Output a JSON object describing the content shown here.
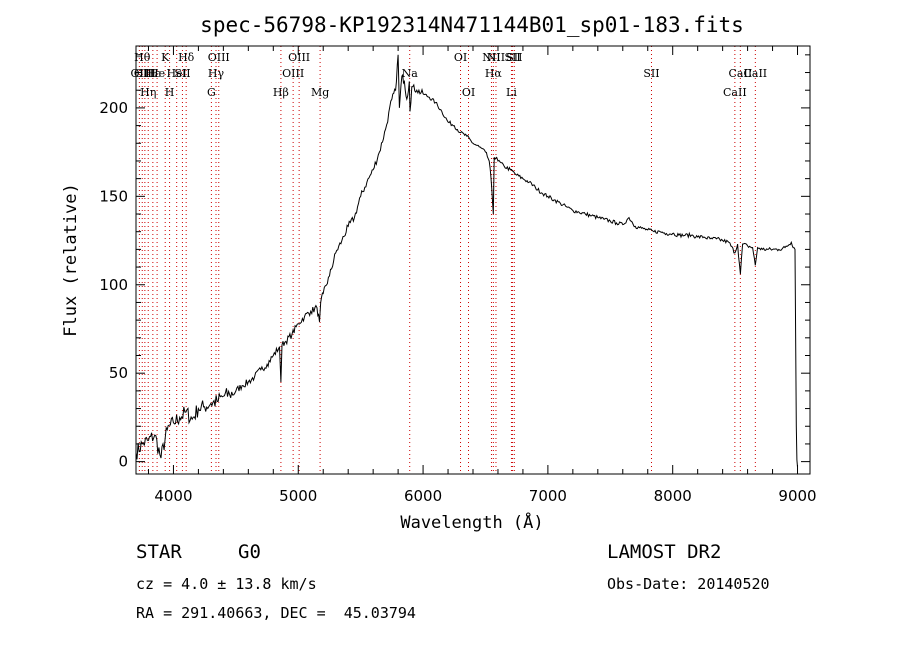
{
  "chart_data": {
    "type": "line",
    "title": "spec-56798-KP192314N471144B01_sp01-183.fits",
    "xlabel": "Wavelength (Å)",
    "ylabel": "Flux (relative)",
    "xlim": [
      3700,
      9100
    ],
    "ylim": [
      -7,
      235
    ],
    "xticks": [
      4000,
      5000,
      6000,
      7000,
      8000,
      9000
    ],
    "yticks": [
      0,
      50,
      100,
      150,
      200
    ],
    "series": [
      {
        "x": [
          3700,
          3750,
          3800,
          3850,
          3900,
          3950,
          4000,
          4050,
          4100,
          4150,
          4200,
          4250,
          4300,
          4350,
          4400,
          4450,
          4500,
          4550,
          4600,
          4650,
          4700,
          4750,
          4800,
          4850,
          4861,
          4870,
          4900,
          4950,
          5000,
          5050,
          5100,
          5150,
          5170,
          5180,
          5200,
          5250,
          5300,
          5350,
          5400,
          5450,
          5500,
          5550,
          5600,
          5650,
          5700,
          5750,
          5780,
          5800,
          5810,
          5830,
          5850,
          5870,
          5890,
          5895,
          5910,
          5950,
          6000,
          6050,
          6100,
          6150,
          6200,
          6250,
          6300,
          6350,
          6400,
          6450,
          6500,
          6530,
          6550,
          6563,
          6570,
          6590,
          6600,
          6650,
          6700,
          6750,
          6800,
          6850,
          6900,
          6950,
          7000,
          7050,
          7100,
          7150,
          7200,
          7250,
          7300,
          7350,
          7400,
          7450,
          7500,
          7550,
          7600,
          7650,
          7700,
          7750,
          7800,
          7850,
          7900,
          7950,
          8000,
          8050,
          8100,
          8150,
          8200,
          8250,
          8300,
          8350,
          8400,
          8450,
          8498,
          8520,
          8542,
          8560,
          8600,
          8640,
          8662,
          8680,
          8720,
          8760,
          8800,
          8850,
          8900,
          8950,
          8980,
          8990,
          8995,
          9000
        ],
        "y": [
          5,
          10,
          12,
          15,
          2,
          18,
          22,
          25,
          28,
          24,
          30,
          31,
          33,
          34,
          37,
          38,
          40,
          43,
          45,
          48,
          52,
          55,
          60,
          65,
          45,
          66,
          68,
          72,
          78,
          82,
          85,
          87,
          79,
          90,
          95,
          105,
          118,
          125,
          133,
          138,
          150,
          158,
          165,
          175,
          188,
          205,
          210,
          230,
          200,
          218,
          215,
          205,
          215,
          198,
          212,
          210,
          208,
          206,
          203,
          198,
          192,
          190,
          186,
          184,
          180,
          178,
          175,
          170,
          155,
          140,
          172,
          172,
          170,
          167,
          165,
          162,
          160,
          158,
          155,
          152,
          150,
          148,
          146,
          144,
          142,
          141,
          140,
          139,
          138,
          137,
          136,
          135,
          134,
          138,
          133,
          132,
          131,
          130,
          130,
          129,
          129,
          128,
          128,
          128,
          127,
          127,
          126,
          126,
          125,
          124,
          118,
          123,
          106,
          123,
          122,
          121,
          111,
          121,
          120,
          120,
          120,
          120,
          121,
          124,
          120,
          20,
          1,
          -3
        ]
      }
    ],
    "lines": [
      {
        "x": 3727,
        "label": "OII",
        "row": 2
      },
      {
        "x": 3750,
        "label": "Hθ",
        "row": 1
      },
      {
        "x": 3771,
        "label": "OIII",
        "row": 2
      },
      {
        "x": 3798,
        "label": "Hη",
        "row": 3
      },
      {
        "x": 3835,
        "label": "Hε",
        "row": 2
      },
      {
        "x": 3869,
        "label": "He",
        "row": 2
      },
      {
        "x": 3934,
        "label": "K",
        "row": 1
      },
      {
        "x": 3969,
        "label": "H",
        "row": 3
      },
      {
        "x": 4026,
        "label": "HeI",
        "row": 2
      },
      {
        "x": 4072,
        "label": "SII",
        "row": 2
      },
      {
        "x": 4102,
        "label": "Hδ",
        "row": 1
      },
      {
        "x": 4304,
        "label": "G",
        "row": 3
      },
      {
        "x": 4341,
        "label": "Hγ",
        "row": 2
      },
      {
        "x": 4363,
        "label": "OIII",
        "row": 1
      },
      {
        "x": 4861,
        "label": "Hβ",
        "row": 3
      },
      {
        "x": 4959,
        "label": "OIII",
        "row": 2
      },
      {
        "x": 5007,
        "label": "OIII",
        "row": 1
      },
      {
        "x": 5175,
        "label": "Mg",
        "row": 3
      },
      {
        "x": 5893,
        "label": "Na",
        "row": 2
      },
      {
        "x": 6300,
        "label": "OI",
        "row": 1
      },
      {
        "x": 6364,
        "label": "OI",
        "row": 3
      },
      {
        "x": 6548,
        "label": "NII",
        "row": 1
      },
      {
        "x": 6563,
        "label": "Hα",
        "row": 2
      },
      {
        "x": 6584,
        "label": "NII",
        "row": 1
      },
      {
        "x": 6708,
        "label": "Li",
        "row": 3
      },
      {
        "x": 6717,
        "label": "SII",
        "row": 1
      },
      {
        "x": 6731,
        "label": "SII",
        "row": 1
      },
      {
        "x": 7830,
        "label": "SII",
        "row": 2
      },
      {
        "x": 8498,
        "label": "CaII",
        "row": 3
      },
      {
        "x": 8542,
        "label": "CaII",
        "row": 2
      },
      {
        "x": 8662,
        "label": "CaII",
        "row": 2
      }
    ]
  },
  "info": {
    "class": "STAR",
    "subclass": "G0",
    "survey": "LAMOST DR2",
    "cz": "cz = 4.0 ± 13.8 km/s",
    "obs_date": "Obs-Date: 20140520",
    "coords": "RA = 291.40663, DEC =  45.03794"
  },
  "colors": {
    "line_marker": "#cc0000",
    "spectrum": "#000000"
  }
}
